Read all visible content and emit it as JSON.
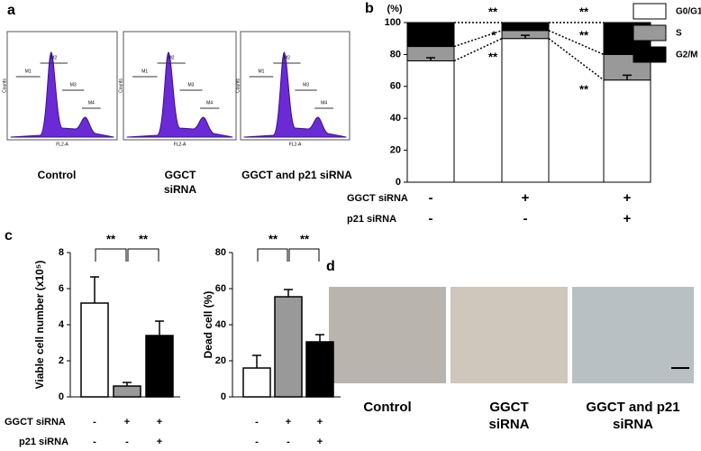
{
  "panel_labels": [
    "a",
    "b",
    "c",
    "d"
  ],
  "panel_a": {
    "captions": [
      "Control",
      "GGCT siRNA",
      "GGCT and p21 siRNA"
    ],
    "gates": [
      "M1",
      "M2",
      "M3",
      "M4"
    ],
    "x_label": "FL2-A",
    "y_label": "Counts"
  },
  "chart_data": [
    {
      "type": "bar",
      "stacked": true,
      "y_label": "(%)",
      "categories": [
        null,
        null,
        null
      ],
      "series": [
        {
          "name": "G0/G1",
          "color": "#ffffff",
          "values": [
            76,
            90,
            64
          ],
          "errors": [
            2,
            2,
            3
          ]
        },
        {
          "name": "S",
          "color": "#999999",
          "values": [
            9,
            5,
            16
          ],
          "errors": [
            1,
            1,
            1
          ]
        },
        {
          "name": "G2/M",
          "color": "#000000",
          "values": [
            15,
            5,
            20
          ]
        }
      ],
      "ylim": [
        0,
        100
      ],
      "yticks": [
        0,
        20,
        40,
        60,
        80,
        100
      ],
      "legend": "top-right",
      "annotations": [
        "**",
        "*",
        "**",
        "**",
        "**",
        "**"
      ],
      "conditions": [
        {
          "name": "GGCT siRNA",
          "values": [
            "-",
            "+",
            "+"
          ]
        },
        {
          "name": "p21 siRNA",
          "values": [
            "-",
            "-",
            "+"
          ]
        }
      ]
    },
    {
      "type": "bar",
      "y_label": "Viable cell number (x10⁵)",
      "categories": [
        null,
        null,
        null
      ],
      "values": [
        5.2,
        0.6,
        3.4
      ],
      "errors": [
        1.45,
        0.2,
        0.8
      ],
      "colors": [
        "#ffffff",
        "#999999",
        "#000000"
      ],
      "ylim": [
        0,
        8
      ],
      "yticks": [
        0,
        2,
        4,
        6,
        8
      ],
      "annotations": [
        "**",
        "**"
      ],
      "conditions": [
        {
          "name": "GGCT siRNA",
          "values": [
            "-",
            "+",
            "+"
          ]
        },
        {
          "name": "p21 siRNA",
          "values": [
            "-",
            "-",
            "+"
          ]
        }
      ]
    },
    {
      "type": "bar",
      "y_label": "Dead cell (%)",
      "categories": [
        null,
        null,
        null
      ],
      "values": [
        16,
        55.5,
        30.5
      ],
      "errors": [
        7,
        4,
        4
      ],
      "colors": [
        "#ffffff",
        "#999999",
        "#000000"
      ],
      "ylim": [
        0,
        80
      ],
      "yticks": [
        0,
        20,
        40,
        60,
        80
      ],
      "annotations": [
        "**",
        "**"
      ]
    }
  ],
  "panel_d": {
    "captions": [
      "Control",
      "GGCT siRNA",
      "GGCT and p21 siRNA"
    ]
  }
}
